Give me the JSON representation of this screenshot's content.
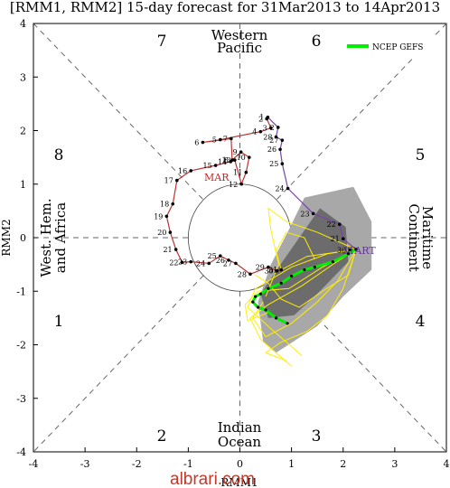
{
  "chart_data": {
    "type": "scatter",
    "title": "[RMM1, RMM2] 15-day forecast for 31Mar2013 to 14Apr2013",
    "xlabel": "RMM1",
    "ylabel": "RMM2",
    "xlim": [
      -4,
      4
    ],
    "ylim": [
      -4,
      4
    ],
    "xticks": [
      "-4",
      "-3",
      "-2",
      "-1",
      "0",
      "1",
      "2",
      "3",
      "4"
    ],
    "yticks": [
      "-4",
      "-3",
      "-2",
      "-1",
      "0",
      "1",
      "2",
      "3",
      "4"
    ],
    "phases": [
      {
        "label": "1",
        "x": -3.5,
        "y": -1.55
      },
      {
        "label": "2",
        "x": -1.5,
        "y": -3.6
      },
      {
        "label": "3",
        "x": 1.5,
        "y": -3.6
      },
      {
        "label": "4",
        "x": 3.5,
        "y": -1.55
      },
      {
        "label": "5",
        "x": 3.5,
        "y": 1.55
      },
      {
        "label": "6",
        "x": 1.5,
        "y": 3.7
      },
      {
        "label": "7",
        "x": -1.5,
        "y": 3.7
      },
      {
        "label": "8",
        "x": -3.5,
        "y": 1.55
      }
    ],
    "regions": {
      "top": [
        "Western",
        "Pacific"
      ],
      "bottom": [
        "Indian",
        "Ocean"
      ],
      "left": [
        "West. Hem.",
        "and Africa"
      ],
      "right": [
        "Maritime",
        "Continent"
      ]
    },
    "month_labels": [
      {
        "text": "MAR",
        "x": -0.48,
        "y": 1.1,
        "color": "#cc2222"
      },
      {
        "text": "START",
        "x": 2.2,
        "y": -0.22,
        "color": "#663399"
      }
    ],
    "legend": {
      "entries": [
        "NCEP GEFS"
      ],
      "position": "top-right"
    },
    "colors": {
      "observed_march": "#bb3333",
      "observed_april": "#7744aa",
      "ensemble_members": "#ffee00",
      "ensemble_mean": "#00ee00",
      "spread_outer": "#a8a8a8",
      "spread_inner": "#6c6c6c"
    },
    "observed": [
      {
        "day": "2",
        "x": 0.52,
        "y": 2.22
      },
      {
        "day": "3",
        "x": 0.6,
        "y": 2.05
      },
      {
        "day": "4",
        "x": 0.4,
        "y": 1.98
      },
      {
        "day": "5",
        "x": -0.38,
        "y": 1.83
      },
      {
        "day": "6",
        "x": -0.72,
        "y": 1.78
      },
      {
        "day": "7",
        "x": -0.17,
        "y": 1.85
      },
      {
        "day": "8",
        "x": -0.15,
        "y": 1.45
      },
      {
        "day": "9",
        "x": 0.02,
        "y": 1.6
      },
      {
        "day": "10",
        "x": 0.18,
        "y": 1.5
      },
      {
        "day": "11",
        "x": 0.12,
        "y": 1.22
      },
      {
        "day": "12",
        "x": 0.03,
        "y": 1.0
      },
      {
        "day": "13",
        "x": -0.1,
        "y": 1.45
      },
      {
        "day": "14",
        "x": -0.18,
        "y": 1.42
      },
      {
        "day": "15",
        "x": -0.47,
        "y": 1.35
      },
      {
        "day": "16",
        "x": -0.95,
        "y": 1.25
      },
      {
        "day": "17",
        "x": -1.22,
        "y": 1.07
      },
      {
        "day": "18",
        "x": -1.3,
        "y": 0.63
      },
      {
        "day": "19",
        "x": -1.42,
        "y": 0.4
      },
      {
        "day": "20",
        "x": -1.35,
        "y": 0.1
      },
      {
        "day": "21",
        "x": -1.24,
        "y": -0.22
      },
      {
        "day": "22",
        "x": -1.12,
        "y": -0.46
      },
      {
        "day": "23",
        "x": -0.95,
        "y": -0.45
      },
      {
        "day": "24",
        "x": -0.6,
        "y": -0.48
      },
      {
        "day": "25",
        "x": -0.38,
        "y": -0.34
      },
      {
        "day": "26",
        "x": -0.22,
        "y": -0.42
      },
      {
        "day": "27",
        "x": -0.08,
        "y": -0.48
      },
      {
        "day": "28",
        "x": 0.2,
        "y": -0.68
      },
      {
        "day": "29",
        "x": 0.55,
        "y": -0.55
      },
      {
        "day": "30",
        "x": 0.72,
        "y": -0.62
      },
      {
        "day": "31",
        "x": 0.8,
        "y": -0.6
      },
      {
        "day": "1",
        "x": 0.54,
        "y": 2.25
      },
      {
        "day": "2",
        "x": 0.74,
        "y": 2.06
      },
      {
        "day": "28",
        "x": 0.7,
        "y": 1.88
      },
      {
        "day": "27",
        "x": 0.82,
        "y": 1.82
      },
      {
        "day": "26",
        "x": 0.78,
        "y": 1.65
      },
      {
        "day": "25",
        "x": 0.82,
        "y": 1.38
      },
      {
        "day": "24",
        "x": 0.93,
        "y": 0.92
      },
      {
        "day": "23",
        "x": 1.42,
        "y": 0.45
      },
      {
        "day": "22",
        "x": 1.93,
        "y": 0.25
      },
      {
        "day": "21",
        "x": 2.0,
        "y": -0.02
      },
      {
        "day": "S",
        "x": 2.25,
        "y": -0.22
      },
      {
        "day": "30",
        "x": 2.13,
        "y": -0.23
      }
    ],
    "series": [
      {
        "name": "NCEP GEFS",
        "x": [
          2.25,
          2.1,
          1.8,
          1.45,
          1.25,
          1.0,
          0.8,
          0.55,
          0.4,
          0.3,
          0.25,
          0.35,
          0.5,
          0.7,
          0.92
        ],
        "y": [
          -0.22,
          -0.3,
          -0.45,
          -0.55,
          -0.6,
          -0.72,
          -0.85,
          -0.95,
          -1.05,
          -1.1,
          -1.2,
          -1.3,
          -1.35,
          -1.5,
          -1.6
        ]
      }
    ]
  },
  "watermark": "albrari.com"
}
